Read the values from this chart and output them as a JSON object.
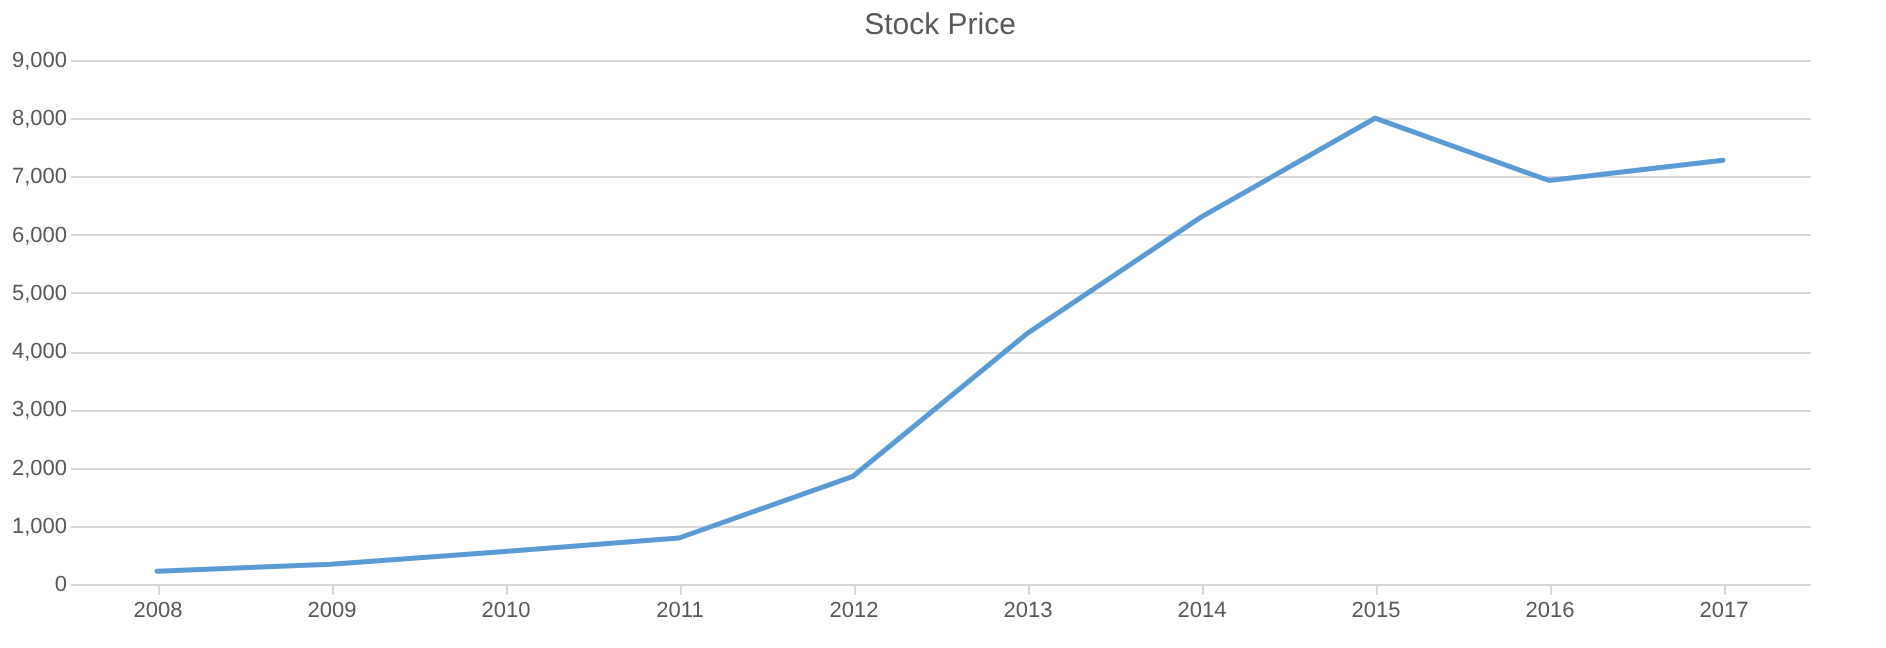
{
  "chart_data": {
    "type": "line",
    "title": "Stock Price",
    "categories": [
      "2008",
      "2009",
      "2010",
      "2011",
      "2012",
      "2013",
      "2014",
      "2015",
      "2016",
      "2017"
    ],
    "series": [
      {
        "color": "#5b9bd5",
        "values": [
          220,
          340,
          560,
          790,
          1850,
          4300,
          6300,
          8000,
          6930,
          7280
        ]
      }
    ],
    "ylim": [
      0,
      9000
    ],
    "yticks": [
      0,
      {
        "value": 1000,
        "label": "1,000"
      },
      {
        "value": 2000,
        "label": "2,000"
      },
      {
        "value": 3000,
        "label": "3,000"
      },
      {
        "value": 4000,
        "label": "4,000"
      },
      {
        "value": 5000,
        "label": "5,000"
      },
      {
        "value": 6000,
        "label": "6,000"
      },
      {
        "value": 7000,
        "label": "7,000"
      },
      {
        "value": 8000,
        "label": "8,000"
      },
      {
        "value": 9000,
        "label": "9,000"
      }
    ],
    "grid": "y",
    "legend": false,
    "marker": "none",
    "line_style": "solid"
  }
}
